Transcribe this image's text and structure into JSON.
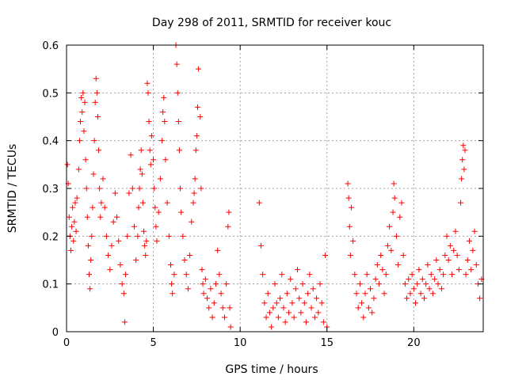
{
  "chart_data": {
    "type": "scatter",
    "title": "Day 298 of 2011, SRMTID for receiver kouc",
    "xlabel": "GPS time / hours",
    "ylabel": "SRMTID / TECUs",
    "xlim": [
      0,
      24
    ],
    "ylim": [
      0,
      0.6
    ],
    "x_ticks": [
      0,
      5,
      10,
      15,
      20
    ],
    "y_ticks": [
      0,
      0.1,
      0.2,
      0.3,
      0.4,
      0.5,
      0.6
    ],
    "x_tick_labels": [
      "0",
      "5",
      "10",
      "15",
      "20"
    ],
    "y_tick_labels": [
      "0",
      "0.1",
      "0.2",
      "0.3",
      "0.4",
      "0.5",
      "0.6"
    ],
    "grid": true,
    "marker": "+",
    "color": "#ff0000",
    "x_grid_lines": [
      5,
      10,
      15,
      20
    ],
    "y_grid_lines": [
      0.1,
      0.2,
      0.3,
      0.4,
      0.5
    ],
    "series": [
      {
        "name": "SRMTID",
        "points": [
          [
            0.05,
            0.35
          ],
          [
            0.1,
            0.31
          ],
          [
            0.15,
            0.24
          ],
          [
            0.2,
            0.2
          ],
          [
            0.25,
            0.17
          ],
          [
            0.3,
            0.22
          ],
          [
            0.35,
            0.26
          ],
          [
            0.4,
            0.19
          ],
          [
            0.45,
            0.23
          ],
          [
            0.5,
            0.27
          ],
          [
            0.55,
            0.21
          ],
          [
            0.6,
            0.28
          ],
          [
            0.7,
            0.34
          ],
          [
            0.75,
            0.4
          ],
          [
            0.8,
            0.44
          ],
          [
            0.85,
            0.49
          ],
          [
            0.9,
            0.46
          ],
          [
            0.95,
            0.5
          ],
          [
            1.0,
            0.42
          ],
          [
            1.05,
            0.48
          ],
          [
            1.1,
            0.36
          ],
          [
            1.15,
            0.3
          ],
          [
            1.2,
            0.24
          ],
          [
            1.25,
            0.18
          ],
          [
            1.3,
            0.12
          ],
          [
            1.35,
            0.09
          ],
          [
            1.4,
            0.15
          ],
          [
            1.45,
            0.2
          ],
          [
            1.5,
            0.26
          ],
          [
            1.55,
            0.33
          ],
          [
            1.6,
            0.4
          ],
          [
            1.65,
            0.48
          ],
          [
            1.7,
            0.53
          ],
          [
            1.75,
            0.5
          ],
          [
            1.8,
            0.45
          ],
          [
            1.85,
            0.38
          ],
          [
            1.9,
            0.3
          ],
          [
            1.95,
            0.24
          ],
          [
            2.0,
            0.27
          ],
          [
            2.1,
            0.32
          ],
          [
            2.2,
            0.26
          ],
          [
            2.3,
            0.2
          ],
          [
            2.4,
            0.16
          ],
          [
            2.5,
            0.13
          ],
          [
            2.6,
            0.18
          ],
          [
            2.7,
            0.23
          ],
          [
            2.8,
            0.29
          ],
          [
            2.9,
            0.24
          ],
          [
            3.0,
            0.19
          ],
          [
            3.1,
            0.14
          ],
          [
            3.2,
            0.1
          ],
          [
            3.3,
            0.08
          ],
          [
            3.35,
            0.02
          ],
          [
            3.4,
            0.12
          ],
          [
            3.5,
            0.2
          ],
          [
            3.6,
            0.29
          ],
          [
            3.7,
            0.37
          ],
          [
            3.8,
            0.3
          ],
          [
            3.9,
            0.22
          ],
          [
            4.0,
            0.15
          ],
          [
            4.1,
            0.2
          ],
          [
            4.15,
            0.26
          ],
          [
            4.2,
            0.3
          ],
          [
            4.25,
            0.34
          ],
          [
            4.3,
            0.38
          ],
          [
            4.35,
            0.33
          ],
          [
            4.4,
            0.27
          ],
          [
            4.45,
            0.21
          ],
          [
            4.5,
            0.18
          ],
          [
            4.55,
            0.16
          ],
          [
            4.6,
            0.19
          ],
          [
            4.65,
            0.52
          ],
          [
            4.7,
            0.5
          ],
          [
            4.75,
            0.44
          ],
          [
            4.8,
            0.38
          ],
          [
            4.85,
            0.35
          ],
          [
            4.9,
            0.41
          ],
          [
            5.0,
            0.36
          ],
          [
            5.05,
            0.3
          ],
          [
            5.1,
            0.26
          ],
          [
            5.15,
            0.22
          ],
          [
            5.2,
            0.19
          ],
          [
            5.3,
            0.25
          ],
          [
            5.4,
            0.32
          ],
          [
            5.5,
            0.4
          ],
          [
            5.55,
            0.46
          ],
          [
            5.6,
            0.49
          ],
          [
            5.65,
            0.44
          ],
          [
            5.7,
            0.36
          ],
          [
            5.8,
            0.27
          ],
          [
            5.9,
            0.2
          ],
          [
            6.0,
            0.14
          ],
          [
            6.05,
            0.1
          ],
          [
            6.1,
            0.08
          ],
          [
            6.2,
            0.12
          ],
          [
            6.3,
            0.6
          ],
          [
            6.35,
            0.56
          ],
          [
            6.4,
            0.5
          ],
          [
            6.45,
            0.44
          ],
          [
            6.5,
            0.38
          ],
          [
            6.55,
            0.3
          ],
          [
            6.6,
            0.25
          ],
          [
            6.7,
            0.2
          ],
          [
            6.8,
            0.15
          ],
          [
            6.9,
            0.12
          ],
          [
            7.0,
            0.09
          ],
          [
            7.1,
            0.16
          ],
          [
            7.2,
            0.23
          ],
          [
            7.3,
            0.27
          ],
          [
            7.35,
            0.29
          ],
          [
            7.4,
            0.32
          ],
          [
            7.45,
            0.38
          ],
          [
            7.5,
            0.41
          ],
          [
            7.55,
            0.47
          ],
          [
            7.6,
            0.55
          ],
          [
            7.7,
            0.45
          ],
          [
            7.75,
            0.3
          ],
          [
            7.8,
            0.13
          ],
          [
            7.85,
            0.1
          ],
          [
            7.9,
            0.08
          ],
          [
            8.0,
            0.11
          ],
          [
            8.1,
            0.07
          ],
          [
            8.2,
            0.05
          ],
          [
            8.3,
            0.09
          ],
          [
            8.4,
            0.03
          ],
          [
            8.5,
            0.06
          ],
          [
            8.6,
            0.1
          ],
          [
            8.7,
            0.17
          ],
          [
            8.8,
            0.12
          ],
          [
            8.9,
            0.08
          ],
          [
            9.0,
            0.05
          ],
          [
            9.1,
            0.03
          ],
          [
            9.2,
            0.1
          ],
          [
            9.3,
            0.22
          ],
          [
            9.35,
            0.25
          ],
          [
            9.4,
            0.05
          ],
          [
            9.45,
            0.01
          ],
          [
            11.1,
            0.27
          ],
          [
            11.2,
            0.18
          ],
          [
            11.3,
            0.12
          ],
          [
            11.4,
            0.06
          ],
          [
            11.5,
            0.03
          ],
          [
            11.6,
            0.08
          ],
          [
            11.7,
            0.04
          ],
          [
            11.8,
            0.01
          ],
          [
            11.9,
            0.05
          ],
          [
            12.0,
            0.1
          ],
          [
            12.1,
            0.06
          ],
          [
            12.2,
            0.03
          ],
          [
            12.3,
            0.07
          ],
          [
            12.4,
            0.12
          ],
          [
            12.5,
            0.05
          ],
          [
            12.6,
            0.02
          ],
          [
            12.7,
            0.08
          ],
          [
            12.8,
            0.04
          ],
          [
            12.9,
            0.11
          ],
          [
            13.0,
            0.06
          ],
          [
            13.1,
            0.03
          ],
          [
            13.2,
            0.09
          ],
          [
            13.3,
            0.13
          ],
          [
            13.4,
            0.07
          ],
          [
            13.5,
            0.04
          ],
          [
            13.6,
            0.1
          ],
          [
            13.7,
            0.06
          ],
          [
            13.8,
            0.02
          ],
          [
            13.9,
            0.08
          ],
          [
            14.0,
            0.12
          ],
          [
            14.1,
            0.05
          ],
          [
            14.2,
            0.09
          ],
          [
            14.3,
            0.03
          ],
          [
            14.4,
            0.07
          ],
          [
            14.5,
            0.04
          ],
          [
            14.6,
            0.1
          ],
          [
            14.7,
            0.06
          ],
          [
            14.8,
            0.02
          ],
          [
            14.9,
            0.16
          ],
          [
            15.0,
            0.01
          ],
          [
            16.2,
            0.31
          ],
          [
            16.25,
            0.28
          ],
          [
            16.3,
            0.22
          ],
          [
            16.35,
            0.16
          ],
          [
            16.4,
            0.26
          ],
          [
            16.5,
            0.19
          ],
          [
            16.6,
            0.12
          ],
          [
            16.7,
            0.08
          ],
          [
            16.8,
            0.05
          ],
          [
            16.9,
            0.1
          ],
          [
            17.0,
            0.06
          ],
          [
            17.1,
            0.03
          ],
          [
            17.2,
            0.08
          ],
          [
            17.3,
            0.12
          ],
          [
            17.4,
            0.05
          ],
          [
            17.5,
            0.09
          ],
          [
            17.6,
            0.04
          ],
          [
            17.7,
            0.07
          ],
          [
            17.8,
            0.11
          ],
          [
            17.9,
            0.14
          ],
          [
            18.0,
            0.1
          ],
          [
            18.1,
            0.16
          ],
          [
            18.2,
            0.13
          ],
          [
            18.3,
            0.08
          ],
          [
            18.4,
            0.12
          ],
          [
            18.5,
            0.18
          ],
          [
            18.6,
            0.22
          ],
          [
            18.7,
            0.17
          ],
          [
            18.8,
            0.25
          ],
          [
            18.85,
            0.31
          ],
          [
            18.9,
            0.28
          ],
          [
            19.0,
            0.2
          ],
          [
            19.1,
            0.14
          ],
          [
            19.2,
            0.24
          ],
          [
            19.3,
            0.27
          ],
          [
            19.4,
            0.16
          ],
          [
            19.5,
            0.1
          ],
          [
            19.6,
            0.07
          ],
          [
            19.7,
            0.11
          ],
          [
            19.8,
            0.08
          ],
          [
            19.9,
            0.12
          ],
          [
            20.0,
            0.09
          ],
          [
            20.1,
            0.06
          ],
          [
            20.2,
            0.1
          ],
          [
            20.3,
            0.13
          ],
          [
            20.4,
            0.08
          ],
          [
            20.5,
            0.11
          ],
          [
            20.6,
            0.07
          ],
          [
            20.7,
            0.1
          ],
          [
            20.8,
            0.14
          ],
          [
            20.9,
            0.09
          ],
          [
            21.0,
            0.12
          ],
          [
            21.1,
            0.08
          ],
          [
            21.2,
            0.11
          ],
          [
            21.3,
            0.15
          ],
          [
            21.4,
            0.1
          ],
          [
            21.5,
            0.13
          ],
          [
            21.6,
            0.09
          ],
          [
            21.7,
            0.12
          ],
          [
            21.8,
            0.16
          ],
          [
            21.9,
            0.2
          ],
          [
            22.0,
            0.15
          ],
          [
            22.1,
            0.18
          ],
          [
            22.2,
            0.12
          ],
          [
            22.3,
            0.17
          ],
          [
            22.4,
            0.21
          ],
          [
            22.5,
            0.16
          ],
          [
            22.6,
            0.13
          ],
          [
            22.7,
            0.27
          ],
          [
            22.75,
            0.32
          ],
          [
            22.8,
            0.36
          ],
          [
            22.85,
            0.39
          ],
          [
            22.9,
            0.34
          ],
          [
            22.95,
            0.38
          ],
          [
            23.0,
            0.12
          ],
          [
            23.1,
            0.15
          ],
          [
            23.2,
            0.19
          ],
          [
            23.3,
            0.13
          ],
          [
            23.4,
            0.17
          ],
          [
            23.5,
            0.21
          ],
          [
            23.6,
            0.14
          ],
          [
            23.7,
            0.1
          ],
          [
            23.8,
            0.07
          ],
          [
            23.9,
            0.11
          ]
        ]
      }
    ]
  }
}
